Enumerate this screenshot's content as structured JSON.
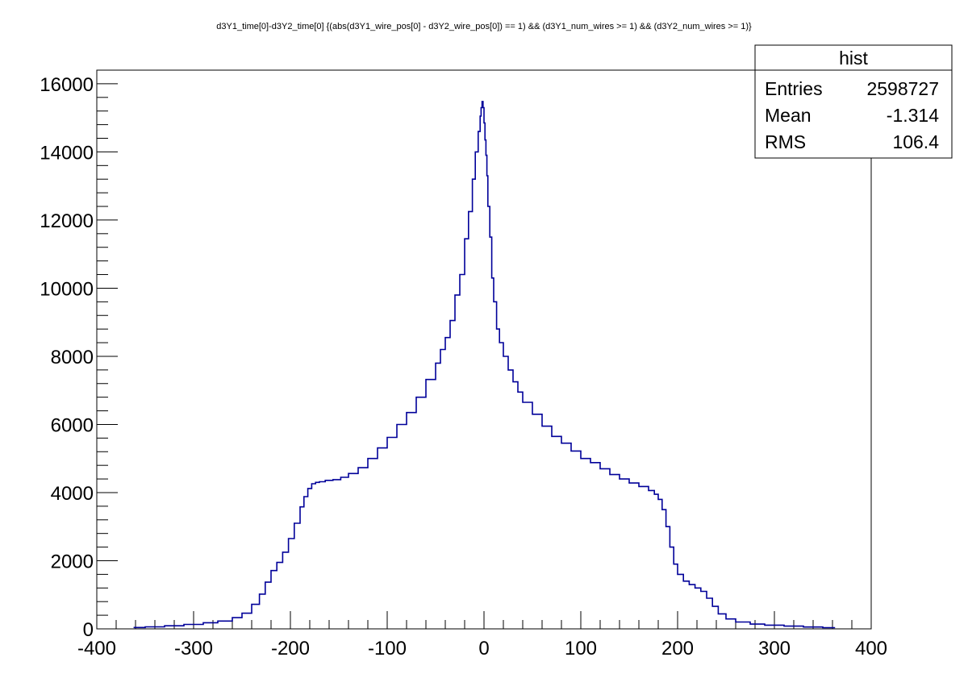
{
  "chart_data": {
    "type": "line",
    "title": "d3Y1_time[0]-d3Y2_time[0]  {(abs(d3Y1_wire_pos[0] - d3Y2_wire_pos[0]) == 1) && (d3Y1_num_wires >= 1) && (d3Y2_num_wires >= 1)}",
    "xlabel": "",
    "ylabel": "",
    "xlim": [
      -400,
      400
    ],
    "ylim": [
      0,
      16400
    ],
    "x_tick_labels": [
      "-400",
      "-300",
      "-200",
      "-100",
      "0",
      "100",
      "200",
      "300",
      "400"
    ],
    "y_tick_labels": [
      "0",
      "2000",
      "4000",
      "6000",
      "8000",
      "10000",
      "12000",
      "14000",
      "16000"
    ],
    "grid": false,
    "line_color": "#000099",
    "series": [
      {
        "x": [
          -362,
          -350,
          -330,
          -310,
          -290,
          -275,
          -260,
          -250,
          -240,
          -232,
          -226,
          -220,
          -214,
          -208,
          -202,
          -196,
          -190,
          -186,
          -182,
          -178,
          -174,
          -170,
          -164,
          -156,
          -148,
          -140,
          -130,
          -120,
          -110,
          -100,
          -90,
          -80,
          -70,
          -60,
          -50,
          -45,
          -40,
          -35,
          -30,
          -25,
          -20,
          -16,
          -12,
          -9,
          -6,
          -4,
          -3,
          -2,
          -1,
          0,
          1,
          2,
          3,
          4,
          6,
          8,
          10,
          13,
          16,
          20,
          25,
          30,
          35,
          40,
          50,
          60,
          70,
          80,
          90,
          100,
          110,
          120,
          130,
          140,
          150,
          160,
          170,
          176,
          180,
          184,
          188,
          192,
          196,
          200,
          206,
          212,
          218,
          224,
          230,
          236,
          242,
          250,
          260,
          275,
          290,
          310,
          330,
          350,
          362
        ],
        "y": [
          40,
          60,
          90,
          130,
          180,
          230,
          330,
          460,
          720,
          1020,
          1370,
          1710,
          1950,
          2250,
          2650,
          3100,
          3580,
          3880,
          4120,
          4260,
          4300,
          4320,
          4360,
          4380,
          4450,
          4560,
          4730,
          5000,
          5310,
          5620,
          6000,
          6350,
          6800,
          7320,
          7800,
          8200,
          8550,
          9050,
          9800,
          10400,
          11450,
          12250,
          13200,
          14000,
          14600,
          15050,
          15300,
          15480,
          15300,
          14850,
          14350,
          13900,
          13300,
          12400,
          11500,
          10300,
          9600,
          8800,
          8400,
          8000,
          7600,
          7250,
          6950,
          6650,
          6300,
          5950,
          5650,
          5450,
          5220,
          5000,
          4880,
          4700,
          4530,
          4400,
          4280,
          4180,
          4060,
          3950,
          3800,
          3500,
          3000,
          2400,
          1900,
          1600,
          1400,
          1300,
          1200,
          1100,
          900,
          660,
          440,
          290,
          200,
          140,
          110,
          80,
          55,
          35,
          20
        ]
      }
    ],
    "stats_box": {
      "name": "hist",
      "rows": [
        {
          "label": "Entries",
          "value": "2598727"
        },
        {
          "label": "Mean",
          "value": "-1.314"
        },
        {
          "label": "RMS",
          "value": "106.4"
        }
      ]
    }
  }
}
